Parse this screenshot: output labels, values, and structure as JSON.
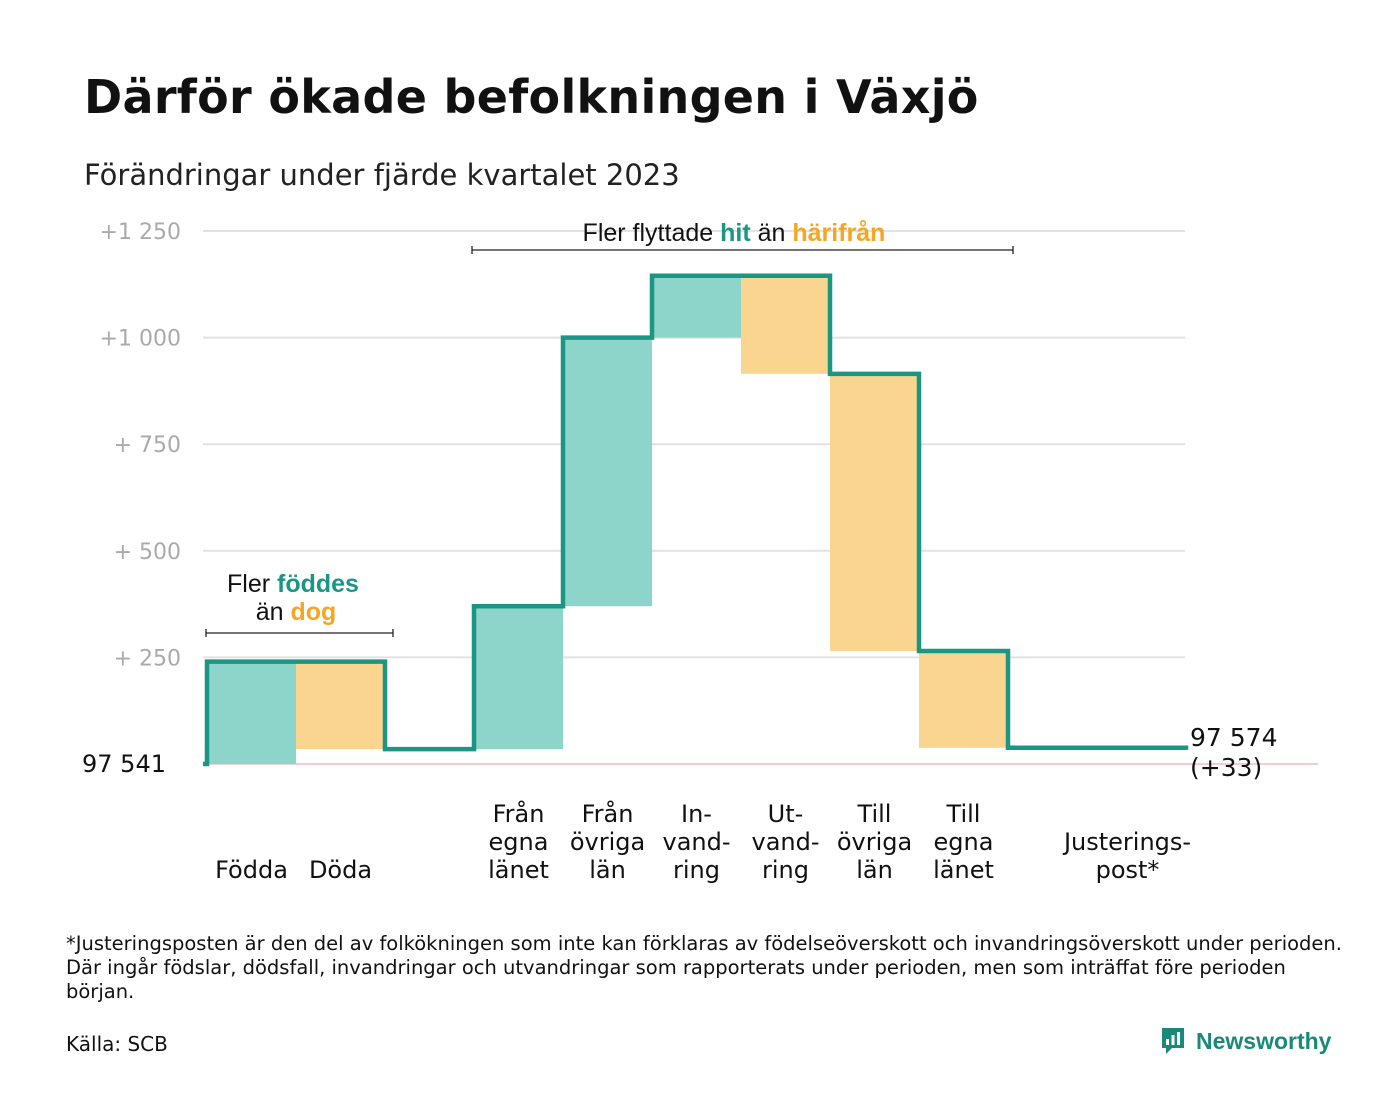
{
  "title": "Därför ökade befolkningen i Växjö",
  "subtitle": "Förändringar under fjärde kvartalet 2023",
  "footnote": "*Justeringsposten är den del av folkökningen som inte kan förklaras av födelseöverskott och invandringsöverskott under perioden. Där ingår födslar, dödsfall, invandringar och utvandringar som rapporterats under perioden, men som inträffat före perioden början.",
  "source": "Källa: SCB",
  "brand": "Newsworthy",
  "colors": {
    "increase": "#8dd5cb",
    "decrease": "#fad58f",
    "line": "#1a9683",
    "grid": "#e2e2e2",
    "baseline": "#f2cfcf",
    "accent_teal": "#1a9683",
    "accent_orange": "#f5a623"
  },
  "chart_data": {
    "type": "waterfall",
    "base_value": 97541,
    "base_label": "97  541",
    "end_label_line1": "97 574",
    "end_label_line2": "(+33)",
    "ylim": [
      0,
      1250
    ],
    "yticks": [
      {
        "value": 250,
        "label": "+  250"
      },
      {
        "value": 500,
        "label": "+  500"
      },
      {
        "value": 750,
        "label": "+  750"
      },
      {
        "value": 1000,
        "label": "+1   000"
      },
      {
        "value": 1250,
        "label": "+1   250"
      }
    ],
    "steps": [
      {
        "category": "Födda",
        "label_lines": [
          "Födda"
        ],
        "start": 0,
        "end": 240
      },
      {
        "category": "Döda",
        "label_lines": [
          "Döda"
        ],
        "start": 240,
        "end": 35
      },
      {
        "category": "",
        "label_lines": [],
        "start": 35,
        "end": 35
      },
      {
        "category": "Från egna länet",
        "label_lines": [
          "Från",
          "egna",
          "länet"
        ],
        "start": 35,
        "end": 370
      },
      {
        "category": "Från övriga län",
        "label_lines": [
          "Från",
          "övriga",
          "län"
        ],
        "start": 370,
        "end": 1000
      },
      {
        "category": "In-vandring",
        "label_lines": [
          "In-",
          "vand-",
          "ring"
        ],
        "start": 1000,
        "end": 1145
      },
      {
        "category": "Ut-vandring",
        "label_lines": [
          "Ut-",
          "vand-",
          "ring"
        ],
        "start": 1145,
        "end": 915
      },
      {
        "category": "Till övriga län",
        "label_lines": [
          "Till",
          "övriga",
          "län"
        ],
        "start": 915,
        "end": 265
      },
      {
        "category": "Till egna länet",
        "label_lines": [
          "Till",
          "egna",
          "länet"
        ],
        "start": 265,
        "end": 38
      },
      {
        "category": "",
        "label_lines": [],
        "start": 38,
        "end": 38
      },
      {
        "category": "Justeringspost*",
        "label_lines": [
          "Justerings-",
          "post*"
        ],
        "start": 38,
        "end": 33
      }
    ],
    "annotations": [
      {
        "id": "births",
        "line1_parts": [
          {
            "text": "Fler ",
            "color": "#111111"
          },
          {
            "text": "föddes",
            "color": "#1a9683",
            "bold": true
          }
        ],
        "line2_parts": [
          {
            "text": "än ",
            "color": "#111111"
          },
          {
            "text": "dog",
            "color": "#f5a623",
            "bold": true
          }
        ]
      },
      {
        "id": "moves",
        "line1_parts": [
          {
            "text": "Fler flyttade ",
            "color": "#111111"
          },
          {
            "text": "hit",
            "color": "#1a9683",
            "bold": true
          },
          {
            "text": "  än ",
            "color": "#111111"
          },
          {
            "text": "härifrån",
            "color": "#f5a623",
            "bold": true
          }
        ]
      }
    ]
  }
}
